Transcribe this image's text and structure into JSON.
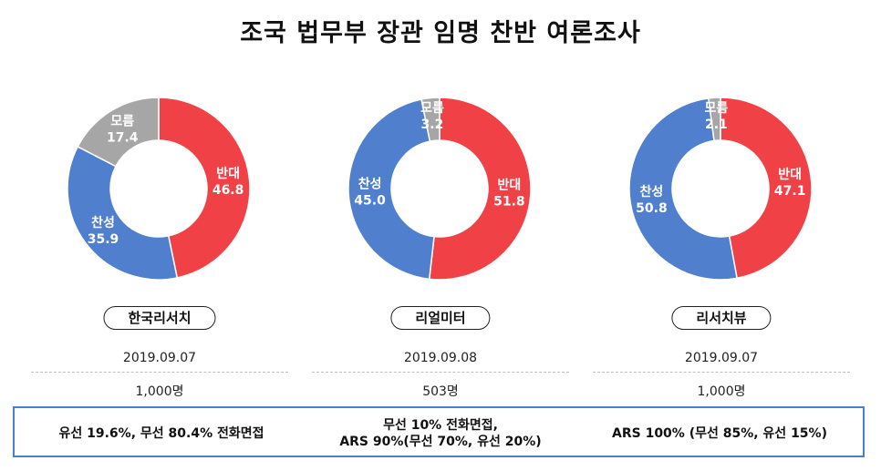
{
  "title": "조국 법무부 장관 임명 찬반 여론조사",
  "colors": {
    "oppose": "#f04146",
    "support": "#4f7fcd",
    "unknown": "#a6a6a6",
    "border": "#4a7fd0"
  },
  "chart_data": [
    {
      "type": "pie",
      "pollster": "한국리서치",
      "date": "2019.09.07",
      "sample": "1,000명",
      "method": "유선 19.6%, 무선 80.4% 전화면접",
      "slices": [
        {
          "name": "반대",
          "value": 46.8,
          "label": "46.8"
        },
        {
          "name": "찬성",
          "value": 35.9,
          "label": "35.9"
        },
        {
          "name": "모름",
          "value": 17.4,
          "label": "17.4"
        }
      ]
    },
    {
      "type": "pie",
      "pollster": "리얼미터",
      "date": "2019.09.08",
      "sample": "503명",
      "method": "무선 10% 전화면접,\nARS 90%(무선 70%, 유선 20%)",
      "slices": [
        {
          "name": "반대",
          "value": 51.8,
          "label": "51.8"
        },
        {
          "name": "찬성",
          "value": 45.0,
          "label": "45.0"
        },
        {
          "name": "모름",
          "value": 3.2,
          "label": "3.2"
        }
      ]
    },
    {
      "type": "pie",
      "pollster": "리서치뷰",
      "date": "2019.09.07",
      "sample": "1,000명",
      "method": "ARS 100% (무선 85%, 유선 15%)",
      "slices": [
        {
          "name": "반대",
          "value": 47.1,
          "label": "47.1"
        },
        {
          "name": "찬성",
          "value": 50.8,
          "label": "50.8"
        },
        {
          "name": "모름",
          "value": 2.1,
          "label": "2.1"
        }
      ]
    }
  ]
}
